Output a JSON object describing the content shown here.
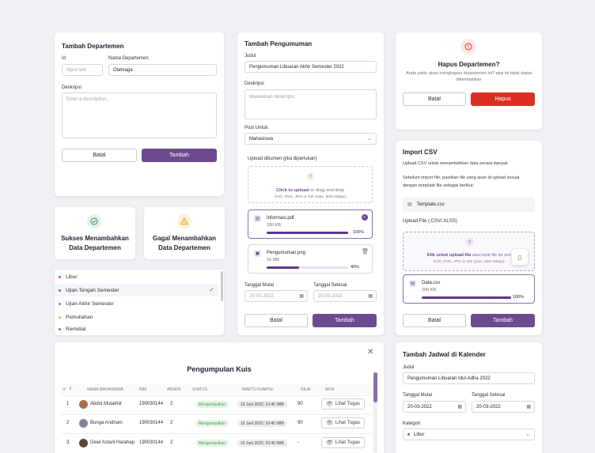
{
  "tambah_departemen": {
    "title": "Tambah Departemen",
    "id_label": "Id",
    "id_placeholder": "Input text",
    "nama_label": "Nama Departemen",
    "nama_value": "Olahraga",
    "deskripsi_label": "Deskripsi",
    "deskripsi_placeholder": "Enter a description...",
    "cancel": "Batal",
    "submit": "Tambah"
  },
  "toast_success": {
    "text": "Sukses Menambahkan Data Departemen",
    "color": "#2e9b52"
  },
  "toast_fail": {
    "text": "Gagal Menambahkan Data Departemen",
    "color": "#e0a122"
  },
  "category_list": {
    "items": [
      {
        "label": "Libur",
        "dot": "#d9446b"
      },
      {
        "label": "Ujian Tengah Semester",
        "dot": "#8a5cc9"
      },
      {
        "label": "Ujian Akhir Semester",
        "dot": "#4f9be0"
      },
      {
        "label": "Perkuliahan",
        "dot": "#f1b43b"
      },
      {
        "label": "Remidial",
        "dot": "#e0447a"
      }
    ],
    "selected_index": 1
  },
  "pengumuman": {
    "title": "Tambah Pengumuman",
    "judul_label": "Judul",
    "judul_value": "Pengumuman Libuaran Akhir Semester 2022",
    "deskripsi_label": "Deskripsi",
    "deskripsi_placeholder": "Masukkan deskripsi",
    "post_label": "Post Untuk:",
    "post_value": "Mahasiswa",
    "upload_label": "Upload dikumen (jika diperlukan)",
    "upload_link": "Click to upload",
    "upload_rest": "or drag and drop",
    "upload_hint": "SVG, PNG, JPG or GIF (max. 800×400px)",
    "files": [
      {
        "name": "Informasi.pdf",
        "size": "200 KB",
        "progress": 100,
        "progress_text": "100%"
      },
      {
        "name": "Pengumuman.png",
        "size": "16 MB",
        "progress": 40,
        "progress_text": "40%"
      }
    ],
    "mulai_label": "Tanggal Mulai",
    "mulai_value": "20-03-2022",
    "selesai_label": "Tanggal Selesai",
    "selesai_value": "20-03-2022",
    "cancel": "Batal",
    "submit": "Tambah"
  },
  "hapus": {
    "title": "Hapus Departemen?",
    "message_1": "Anda yakin akan menghapus departemen ini? aksi ini tidak dapat",
    "message_2": "dikembalikan",
    "cancel": "Batal",
    "confirm": "Hapus"
  },
  "import_csv": {
    "title": "Import CSV",
    "subtitle": "Upload CSV untuk menambahkan data secara banyak",
    "info_1": "Sebelum import file, pastikan file yang akan di upload sesuai",
    "info_2": "dengan template file sebagai berikut:",
    "template_name": "Template.csv",
    "upload_label": "Upload File (.CSV/.XLSS)",
    "upload_link": "Klik untuk upload file",
    "upload_rest": "atau tarik file ke sini",
    "upload_hint": "SVG, PNG, JPG or GIF (max. 800×400px)",
    "file": {
      "name": "Data.csv",
      "size": "200 KB",
      "progress": 100,
      "progress_text": "100%"
    },
    "cancel": "Batal",
    "submit": "Tambah"
  },
  "kuis": {
    "title": "Pengumpulan Kuis",
    "headers": [
      "#",
      "NAMA MAHASISWA",
      "NIM",
      "ABSEN",
      "STATUS",
      "WAKTU KUMPUL",
      "NILAI",
      "AKSI"
    ],
    "rows": [
      {
        "no": "1",
        "name": "Abdul Mutakhir",
        "nim": "190030144",
        "absen": "2",
        "status": "Mengumpulkan",
        "waktu": "15 Juni 2022, 10:45 WIB",
        "nilai": "90",
        "aksi": "Lihat Tugas",
        "avatar": "#a8704a"
      },
      {
        "no": "2",
        "name": "Bunga Andriani",
        "nim": "190030144",
        "absen": "2",
        "status": "Mengumpulkan",
        "waktu": "15 Juni 2022, 10:45 WIB",
        "nilai": "90",
        "aksi": "Lihat Tugas",
        "avatar": "#7f8793"
      },
      {
        "no": "3",
        "name": "Dewi Astani Harahap",
        "nim": "190030144",
        "absen": "2",
        "status": "Mengumpulkan",
        "waktu": "15 Juni 2022, 10:45 WIB",
        "nilai": "-",
        "aksi": "Lihat Tugas",
        "avatar": "#5d4536"
      }
    ]
  },
  "jadwal": {
    "title": "Tambah Jadwal di Kalender",
    "judul_label": "Judul",
    "judul_value": "Pengumuman Libuaran Idul-Adha 2022",
    "mulai_label": "Tanggal Mulai",
    "mulai_value": "20-03-2022",
    "selesai_label": "Tanggal Selesai",
    "selesai_value": "20-03-2022",
    "kategori_label": "Kategori",
    "kategori_value": "Libur"
  }
}
